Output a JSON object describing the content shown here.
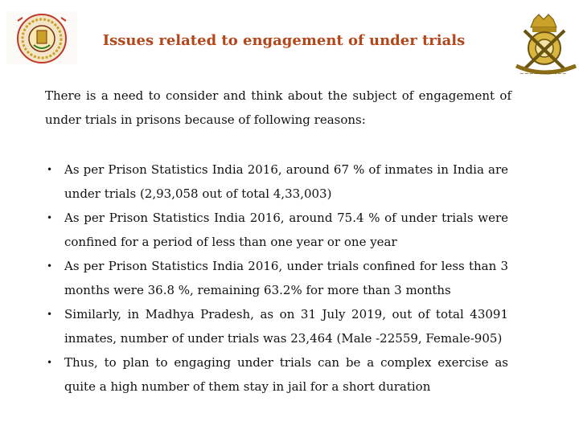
{
  "slide": {
    "title": "Issues related to  engagement of under trials",
    "intro": "There is a need to consider and think about the subject of engagement of under trials in prisons because of following reasons:",
    "bullets": [
      "As per Prison Statistics India 2016, around 67 % of inmates in India are under trials (2,93,058 out of total 4,33,003)",
      "As per Prison Statistics India 2016, around 75.4 % of under trials were confined for a period of less than one year or one year",
      "As per Prison Statistics India 2016, under trials confined for less than 3 months were 36.8 %, remaining 63.2% for more than 3 months",
      "Similarly, in Madhya Pradesh, as on 31 July 2019, out of total 43091 inmates, number of under trials was 23,464 (Male -22559, Female-905)",
      "Thus, to plan to engaging under trials can be a complex exercise as quite a high number of them stay in jail for a short duration"
    ],
    "bullet_symbol": "•"
  },
  "logos": {
    "left": "madhya-pradesh-emblem",
    "right": "police-emblem"
  },
  "colors": {
    "title": "#b5461a",
    "emblem_gold": "#c9a227"
  }
}
